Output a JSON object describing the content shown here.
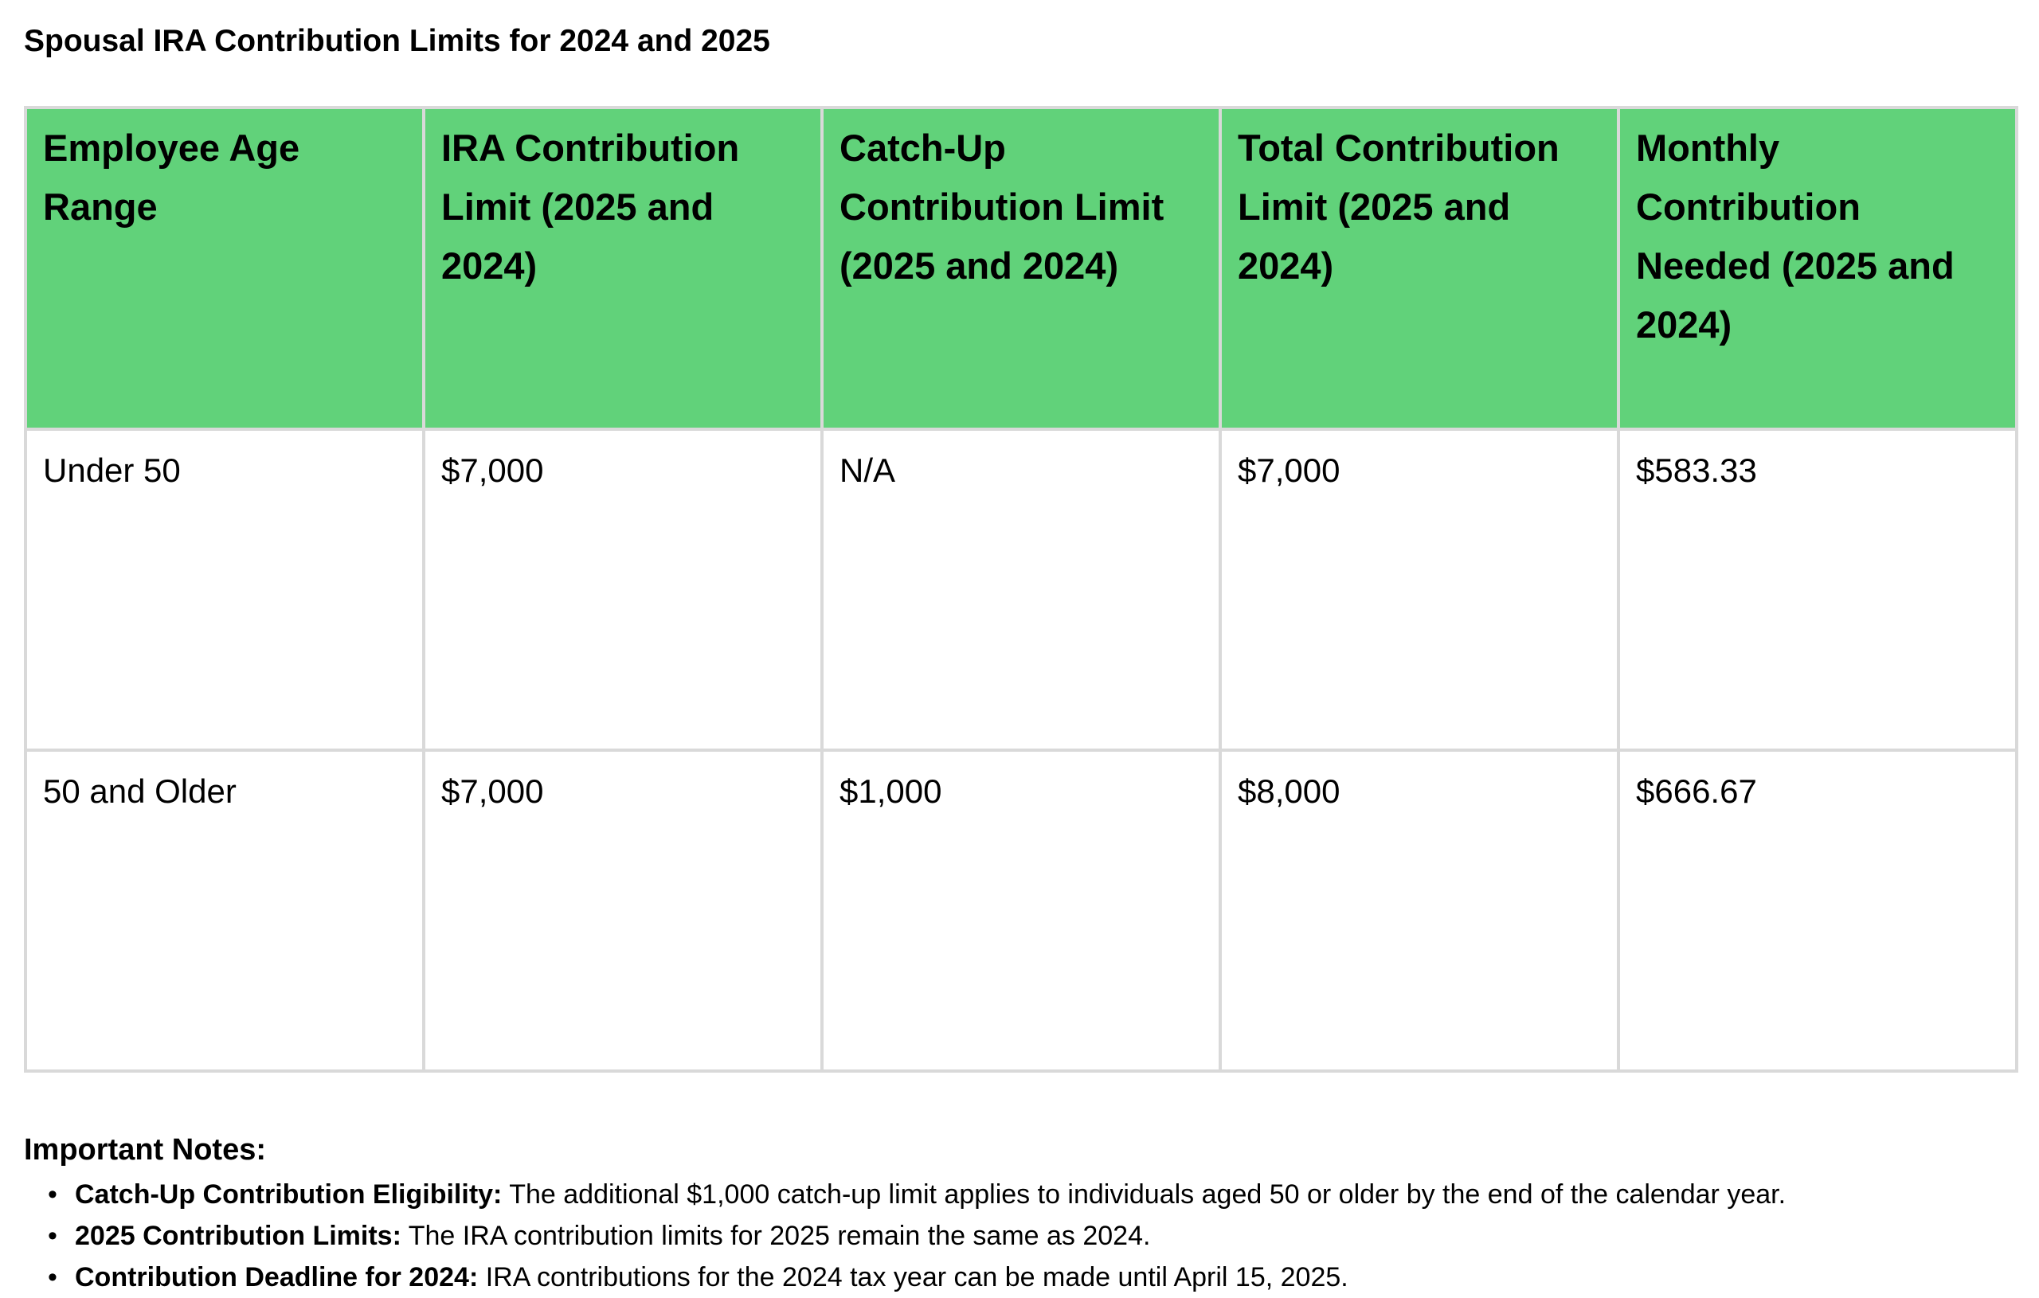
{
  "title": "Spousal IRA Contribution Limits for 2024 and 2025",
  "table": {
    "headers": [
      "Employee Age Range",
      "IRA Contribution Limit (2025 and 2024)",
      "Catch-Up Contribution Limit (2025 and 2024)",
      "Total Contribution Limit (2025 and 2024)",
      "Monthly Contribution Needed (2025 and 2024)"
    ],
    "rows": [
      [
        "Under 50",
        "$7,000",
        "N/A",
        "$7,000",
        "$583.33"
      ],
      [
        "50 and Older",
        "$7,000",
        "$1,000",
        "$8,000",
        "$666.67"
      ]
    ],
    "header_color": "#61d27a",
    "border_color": "#d9d9d9"
  },
  "notes": {
    "heading": "Important Notes:",
    "items": [
      {
        "label": "Catch-Up Contribution Eligibility:",
        "text": " The additional $1,000 catch-up limit applies to individuals aged 50 or older by the end of the calendar year."
      },
      {
        "label": "2025 Contribution Limits:",
        "text": " The IRA contribution limits for 2025 remain the same as 2024."
      },
      {
        "label": "Contribution Deadline for 2024:",
        "text": " IRA contributions for the 2024 tax year can be made until April 15, 2025."
      }
    ]
  }
}
